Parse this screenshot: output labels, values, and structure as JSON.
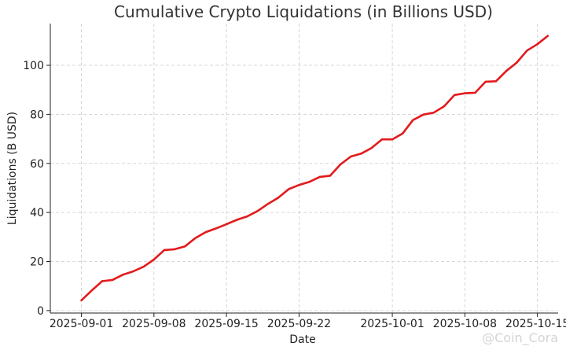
{
  "chart_data": {
    "type": "line",
    "title": "Cumulative Crypto Liquidations (in Billions USD)",
    "xlabel": "Date",
    "ylabel": "Liquidations (B USD)",
    "xlim": [
      "2025-08-29",
      "2025-10-17"
    ],
    "ylim": [
      -1,
      117
    ],
    "x_ticks": [
      "2025-09-01",
      "2025-09-08",
      "2025-09-15",
      "2025-09-22",
      "2025-10-01",
      "2025-10-08",
      "2025-10-15"
    ],
    "y_ticks": [
      0,
      20,
      40,
      60,
      80,
      100
    ],
    "grid": true,
    "line_color": "#e31a1c",
    "x": [
      "2025-09-01",
      "2025-09-02",
      "2025-09-03",
      "2025-09-04",
      "2025-09-05",
      "2025-09-06",
      "2025-09-07",
      "2025-09-08",
      "2025-09-09",
      "2025-09-10",
      "2025-09-11",
      "2025-09-12",
      "2025-09-13",
      "2025-09-14",
      "2025-09-15",
      "2025-09-16",
      "2025-09-17",
      "2025-09-18",
      "2025-09-19",
      "2025-09-20",
      "2025-09-21",
      "2025-09-22",
      "2025-09-23",
      "2025-09-24",
      "2025-09-25",
      "2025-09-26",
      "2025-09-27",
      "2025-09-28",
      "2025-09-29",
      "2025-09-30",
      "2025-10-01",
      "2025-10-02",
      "2025-10-03",
      "2025-10-04",
      "2025-10-05",
      "2025-10-06",
      "2025-10-07",
      "2025-10-08",
      "2025-10-09",
      "2025-10-10",
      "2025-10-11",
      "2025-10-12",
      "2025-10-13",
      "2025-10-14",
      "2025-10-15",
      "2025-10-16"
    ],
    "series": [
      {
        "values": [
          4.2,
          8.2,
          12.0,
          12.5,
          14.6,
          16.0,
          17.9,
          20.8,
          24.7,
          25.0,
          26.2,
          29.6,
          32.0,
          33.5,
          35.2,
          37.0,
          38.4,
          40.6,
          43.5,
          46.0,
          49.5,
          51.2,
          52.5,
          54.5,
          55.0,
          59.6,
          62.8,
          64.0,
          66.3,
          69.8,
          69.8,
          72.2,
          77.7,
          79.9,
          80.7,
          83.3,
          87.9,
          88.6,
          88.8,
          93.3,
          93.5,
          97.7,
          101.1,
          106.0,
          108.6,
          112.0
        ]
      }
    ]
  },
  "watermark": "@Coin_Cora"
}
